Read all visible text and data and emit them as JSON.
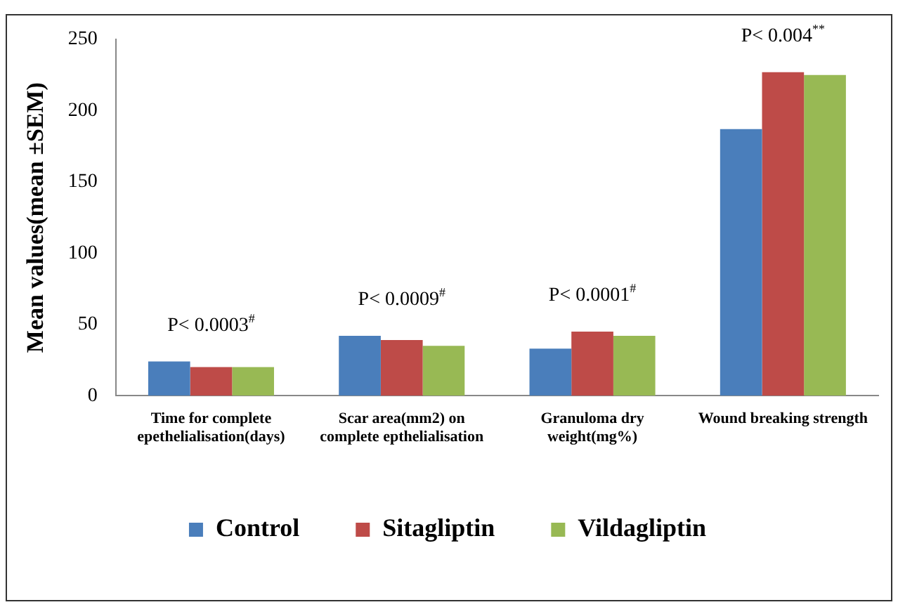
{
  "chart_data": {
    "type": "bar",
    "ylabel": "Mean values(mean ±SEM)",
    "categories": [
      "Time for complete epethelialisation(days)",
      "Scar area(mm2) on complete epthelialisation",
      "Granuloma dry weight(mg%)",
      "Wound breaking strength"
    ],
    "series": [
      {
        "name": "Control",
        "color": "#4a7ebb",
        "values": [
          24,
          42,
          33,
          187
        ]
      },
      {
        "name": "Sitagliptin",
        "color": "#be4b48",
        "values": [
          20,
          39,
          45,
          227
        ]
      },
      {
        "name": "Vildagliptin",
        "color": "#98b954",
        "values": [
          20,
          35,
          42,
          225
        ]
      }
    ],
    "ylim": [
      0,
      250
    ],
    "yticks": [
      0,
      50,
      100,
      150,
      200,
      250
    ],
    "grid": false,
    "legend": "bottom",
    "annotations": [
      {
        "text": "P< 0.0003$^{#}$",
        "x": "Time for complete epethelialisation(days)",
        "y": 24
      },
      {
        "text": "P< 0.0009$^{#}$",
        "x": "Scar area(mm2) on complete epthelialisation",
        "y": 42
      },
      {
        "text": "P< 0.0001$^{#}$",
        "x": "Granuloma dry weight(mg%)",
        "y": 45
      },
      {
        "text": "P< 0.004$^{**}$",
        "x": "Wound breaking strength",
        "y": 227
      }
    ]
  }
}
